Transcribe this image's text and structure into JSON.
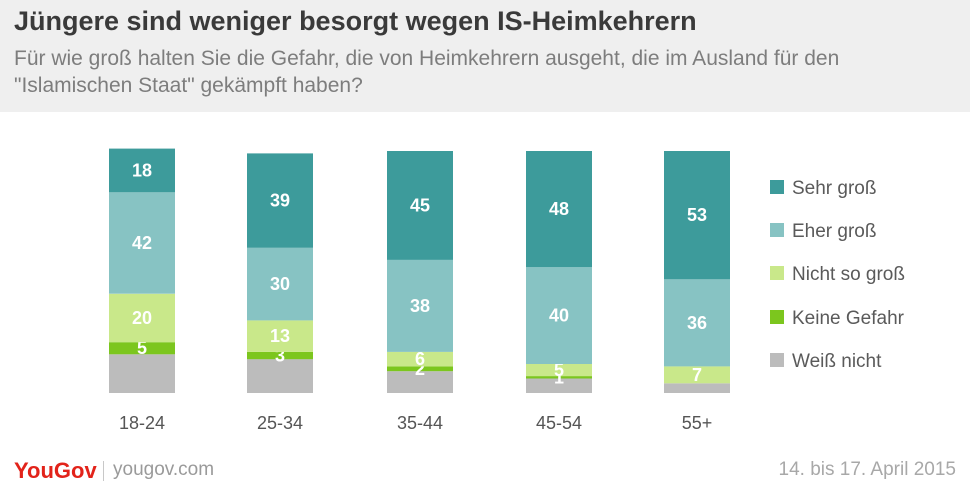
{
  "header": {
    "title": "Jüngere sind weniger besorgt wegen IS-Heimkehrern",
    "subtitle": "Für wie groß halten Sie die Gefahr, die von Heimkehrern ausgeht, die im Ausland für den \"Islamischen Staat\" gekämpft haben?"
  },
  "footer": {
    "logo": "YouGov",
    "url": "yougov.com",
    "date": "14. bis 17. April 2015"
  },
  "colors": {
    "sehr_gross": "#3d9b9b",
    "eher_gross": "#87c3c3",
    "nicht_so_gross": "#c9e88a",
    "keine_gefahr": "#7cc61e",
    "weiss_nicht": "#bcbcbc",
    "label": "#ffffff",
    "axis_text": "#555555",
    "legend_text": "#5a5a5a"
  },
  "chart_data": {
    "type": "bar",
    "stacked": true,
    "categories": [
      "18-24",
      "25-34",
      "35-44",
      "45-54",
      "55+"
    ],
    "series": [
      {
        "name": "Sehr groß",
        "values": [
          18,
          39,
          45,
          48,
          53
        ]
      },
      {
        "name": "Eher groß",
        "values": [
          42,
          30,
          38,
          40,
          36
        ]
      },
      {
        "name": "Nicht so groß",
        "values": [
          20,
          13,
          6,
          5,
          7
        ]
      },
      {
        "name": "Keine Gefahr",
        "values": [
          5,
          3,
          2,
          1,
          0
        ]
      },
      {
        "name": "Weiß nicht",
        "values": [
          16,
          14,
          9,
          6,
          4
        ]
      }
    ],
    "labels": [
      [
        "18",
        "42",
        "20",
        "5",
        ""
      ],
      [
        "39",
        "30",
        "13",
        "3",
        ""
      ],
      [
        "45",
        "38",
        "6",
        "2",
        ""
      ],
      [
        "48",
        "40",
        "5",
        "1",
        ""
      ],
      [
        "53",
        "36",
        "7",
        "",
        ""
      ]
    ],
    "legend_position": "right",
    "grid": false
  }
}
